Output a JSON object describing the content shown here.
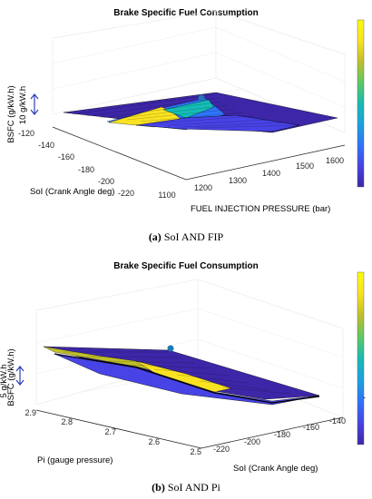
{
  "captions": [
    {
      "letter": "(a)",
      "text": " SoI AND FIP"
    },
    {
      "letter": "(b)",
      "text": " SoI AND Pi"
    }
  ],
  "colors": {
    "colormap": [
      "#3e26a8",
      "#4743e6",
      "#2f74fb",
      "#1aa1e0",
      "#14bcb4",
      "#5ec962",
      "#bfbf2a",
      "#f9e222",
      "#f9fb0e"
    ],
    "edge": "#000000",
    "marker": "#1f77b4",
    "annotation_arrow": "#2b3eb8"
  },
  "chart_data": [
    {
      "type": "surface",
      "title": "Brake Specific Fuel Consumption",
      "zlabel": "BSFC (g/kW.h)",
      "xlabel": "FUEL INJECTION PRESSURE (bar)",
      "ylabel": "SoI (Crank Angle deg)",
      "x_ticks": [
        "1100",
        "1200",
        "1300",
        "1400",
        "1500",
        "1600"
      ],
      "y_ticks": [
        "-120",
        "-140",
        "-160",
        "-180",
        "-200",
        "-220"
      ],
      "xlim": [
        1100,
        1650
      ],
      "ylim": [
        -220,
        -120
      ],
      "scale_annotation": "10 g/kW.h",
      "colorbar": true,
      "colorbar_ticks": [],
      "grid": true,
      "peak_marker": {
        "x": 1400,
        "y": -120
      }
    },
    {
      "type": "surface",
      "title": "Brake Specific Fuel Consumption",
      "zlabel": "BSFC (g/kW.h)",
      "xlabel": "Pi (gauge pressure)",
      "ylabel": "SoI (Crank Angle deg)",
      "x_ticks": [
        "2.9",
        "2.8",
        "2.7",
        "2.6",
        "2.5"
      ],
      "y_ticks": [
        "-220",
        "-200",
        "-180",
        "-160",
        "-140"
      ],
      "xlim": [
        2.5,
        2.9
      ],
      "ylim": [
        -220,
        -130
      ],
      "scale_annotation": "5 g/kW.h",
      "colorbar": true,
      "colorbar_ticks": [
        "-"
      ],
      "grid": true,
      "peak_marker": {
        "x": 2.6,
        "y": -130
      }
    }
  ]
}
